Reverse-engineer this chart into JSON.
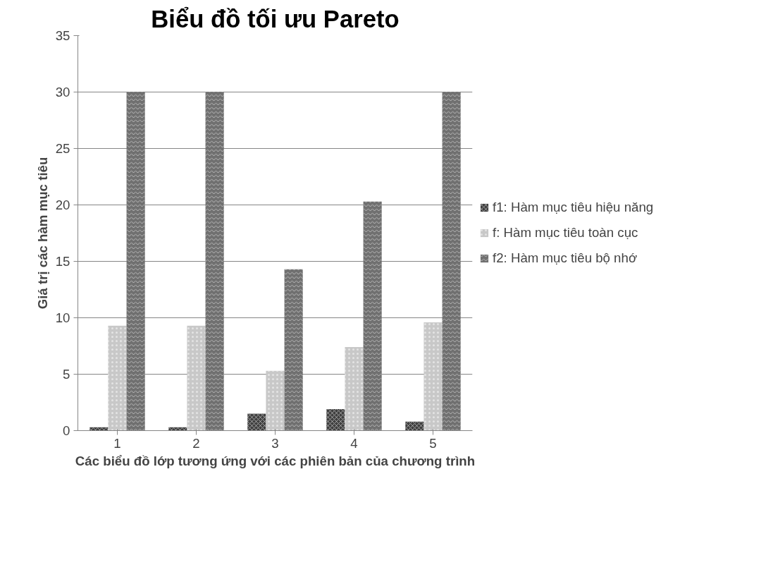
{
  "chart_data": {
    "type": "bar",
    "title": "Biểu đồ tối ưu Pareto",
    "xlabel": "Các biểu đồ lớp tương ứng với các phiên bản của chương trình",
    "ylabel": "Giá trị các hàm mục tiêu",
    "categories": [
      "1",
      "2",
      "3",
      "4",
      "5"
    ],
    "series": [
      {
        "name": "f1: Hàm mục tiêu hiệu năng",
        "color": "#404040",
        "values": [
          0.3,
          0.3,
          1.5,
          1.9,
          0.8
        ]
      },
      {
        "name": "f: Hàm mục tiêu toàn cục",
        "color": "#c8c8c8",
        "values": [
          9.3,
          9.3,
          5.3,
          7.4,
          9.6
        ]
      },
      {
        "name": "f2: Hàm mục tiêu bộ nhớ",
        "color": "#707070",
        "values": [
          30,
          30,
          14.3,
          20.3,
          30
        ]
      }
    ],
    "ylim": [
      0,
      35
    ],
    "yticks": [
      0,
      5,
      10,
      15,
      20,
      25,
      30,
      35
    ],
    "grid": "y",
    "legend": "right"
  }
}
